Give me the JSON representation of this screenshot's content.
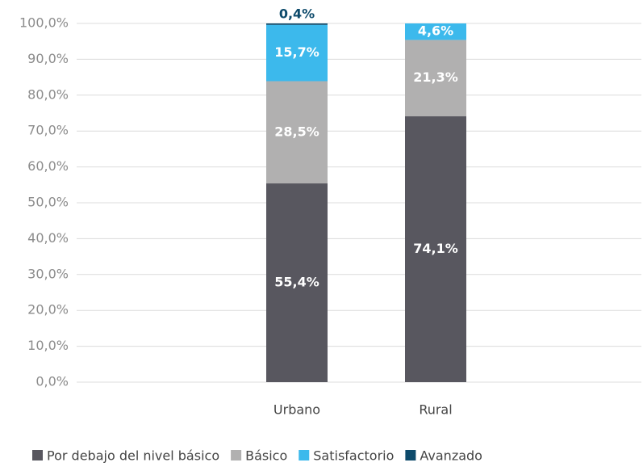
{
  "chart_data": {
    "type": "stacked_bar",
    "categories": [
      "Urbano",
      "Rural"
    ],
    "series": [
      {
        "name": "Por debajo del nivel básico",
        "color": "#58575f",
        "values": [
          55.4,
          74.1
        ],
        "value_labels": [
          "55,4%",
          "74,1%"
        ]
      },
      {
        "name": "Básico",
        "color": "#b1b0b0",
        "values": [
          28.5,
          21.3
        ],
        "value_labels": [
          "28,5%",
          "21,3%"
        ]
      },
      {
        "name": "Satisfactorio",
        "color": "#3cb9ec",
        "values": [
          15.7,
          4.6
        ],
        "value_labels": [
          "15,7%",
          "4,6%"
        ]
      },
      {
        "name": "Avanzado",
        "color": "#0d4a6b",
        "values": [
          0.4,
          null
        ],
        "value_labels": [
          "0,4%",
          null
        ]
      }
    ],
    "ylim": [
      0,
      100
    ],
    "yticks": [
      {
        "value": 0,
        "label": "0,0%"
      },
      {
        "value": 10,
        "label": "10,0%"
      },
      {
        "value": 20,
        "label": "20,0%"
      },
      {
        "value": 30,
        "label": "30,0%"
      },
      {
        "value": 40,
        "label": "40,0%"
      },
      {
        "value": 50,
        "label": "50,0%"
      },
      {
        "value": 60,
        "label": "60,0%"
      },
      {
        "value": 70,
        "label": "70,0%"
      },
      {
        "value": 80,
        "label": "80,0%"
      },
      {
        "value": 90,
        "label": "90,0%"
      },
      {
        "value": 100,
        "label": "100,0%"
      }
    ],
    "grid": true,
    "legend": "bottom"
  }
}
